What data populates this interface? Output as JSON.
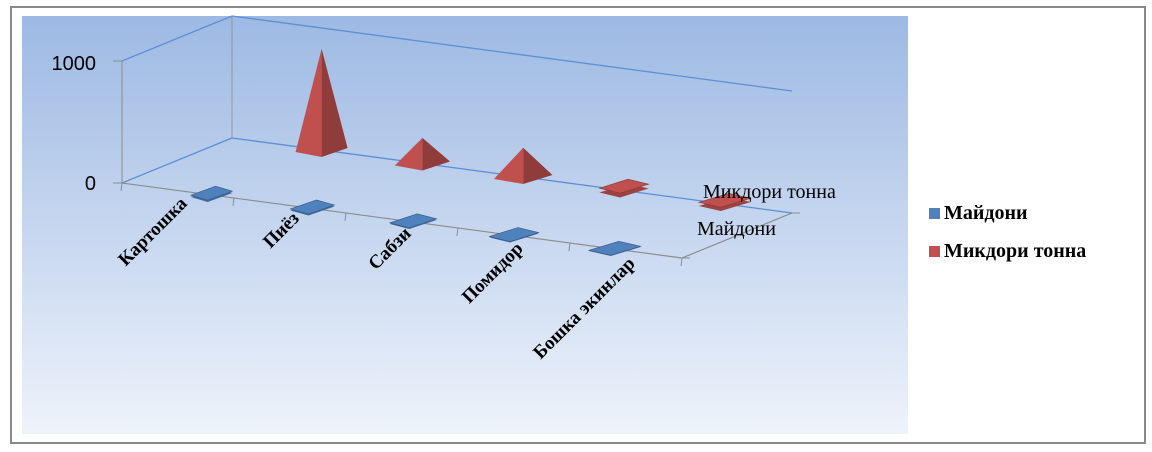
{
  "chart_data": {
    "type": "bar",
    "subtype": "3d-pyramid",
    "categories": [
      "Картошка",
      "Пиёз",
      "Сабзи",
      "Помидор",
      "Бошка экинлар"
    ],
    "series": [
      {
        "name": "Майдони",
        "values": [
          15,
          12,
          10,
          8,
          6
        ]
      },
      {
        "name": "Микдори тонна",
        "values": [
          830,
          210,
          240,
          35,
          30
        ]
      }
    ],
    "ylim": [
      0,
      1000
    ],
    "yticks": [
      "0",
      "1000"
    ],
    "depth_labels": [
      "Микдори тонна",
      "Майдони"
    ],
    "legend_position": "right",
    "colors": {
      "Майдони": "#4f81bd",
      "Микдори тонна": "#c0504d",
      "background_top": "#9db9e3",
      "background_bottom": "#eef3fb",
      "gridline": "#5b8fd6"
    }
  }
}
